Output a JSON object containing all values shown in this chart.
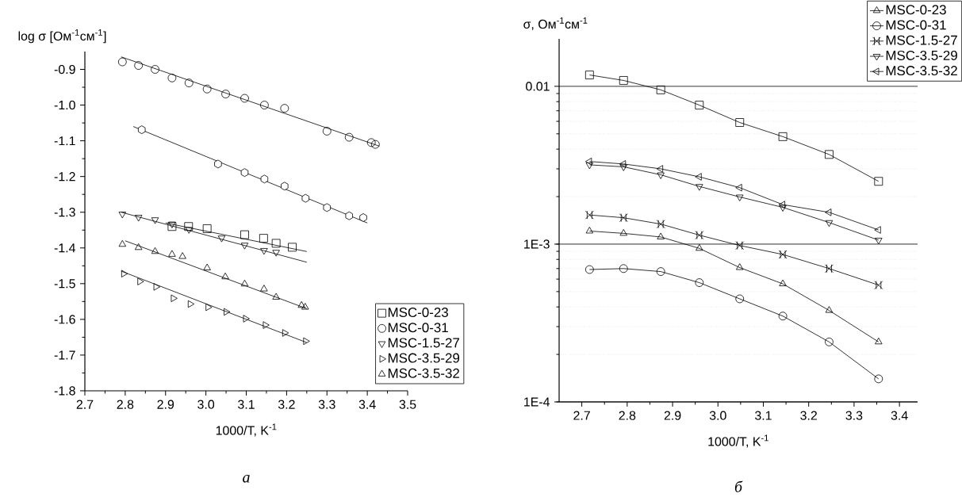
{
  "chart_data": [
    {
      "type": "scatter",
      "ylabel": "log σ [Ом$^{-1}$см$^{-1}$]",
      "xlabel": "1000/T, K$^{-1}$",
      "annotations": [
        "а"
      ],
      "xlim": [
        2.7,
        3.5
      ],
      "ylim": [
        -1.8,
        -0.85
      ],
      "xticks": [
        2.7,
        2.8,
        2.9,
        {
          "value": 3.0,
          "label": "3.0"
        },
        3.1,
        3.2,
        3.3,
        3.4,
        3.5
      ],
      "yticks": [
        -1.8,
        -1.7,
        -1.6,
        -1.5,
        -1.4,
        -1.3,
        -1.2,
        -1.1,
        {
          "value": -1.0,
          "label": "-1.0"
        },
        -0.9
      ],
      "legend": "bottom right",
      "series": [
        {
          "color": "#000000",
          "x": [
            2.841,
            3.03,
            3.096,
            3.145,
            3.195,
            3.247,
            3.3,
            3.355,
            3.39
          ],
          "values": [
            -1.069,
            -1.165,
            -1.189,
            -1.207,
            -1.227,
            -1.261,
            -1.287,
            -1.31,
            -1.315
          ]
        },
        {
          "name": "MSC-0-23",
          "marker": "square",
          "color": "#000000",
          "x": [
            2.916,
            2.957,
            3.003,
            3.096,
            3.143,
            3.174,
            3.214
          ],
          "values": [
            -1.34,
            -1.34,
            -1.346,
            -1.363,
            -1.373,
            -1.387,
            -1.398
          ]
        },
        {
          "name": "MSC-0-31",
          "marker": "circle",
          "color": "#000000",
          "x": [
            2.793,
            2.833,
            2.874,
            2.916,
            2.958,
            3.003,
            3.049,
            3.096,
            3.145,
            3.195,
            3.3,
            3.355,
            3.41,
            3.42
          ],
          "values": [
            -0.879,
            -0.889,
            -0.9,
            -0.924,
            -0.938,
            -0.955,
            -0.969,
            -0.981,
            -1.0,
            -1.009,
            -1.073,
            -1.09,
            -1.105,
            -1.11
          ]
        },
        {
          "name": "MSC-1.5-27",
          "marker": "triangle-down",
          "color": "#000000",
          "x": [
            2.793,
            2.833,
            2.874,
            2.916,
            2.958,
            3.039,
            3.096,
            3.144,
            3.174
          ],
          "values": [
            -1.305,
            -1.314,
            -1.321,
            -1.333,
            -1.348,
            -1.372,
            -1.392,
            -1.407,
            -1.412
          ]
        },
        {
          "name": "MSC-3.5-29",
          "marker": "triangle-right",
          "color": "#000000",
          "x": [
            2.796,
            2.836,
            2.876,
            2.919,
            2.961,
            3.005,
            3.05,
            3.098,
            3.147,
            3.195,
            3.247
          ],
          "values": [
            -1.472,
            -1.494,
            -1.509,
            -1.541,
            -1.557,
            -1.566,
            -1.579,
            -1.598,
            -1.616,
            -1.638,
            -1.661
          ]
        },
        {
          "name": "MSC-3.5-32",
          "marker": "triangle",
          "color": "#000000",
          "x": [
            2.793,
            2.833,
            2.874,
            2.916,
            2.942,
            3.003,
            3.048,
            3.096,
            3.144,
            3.174,
            3.237,
            3.246
          ],
          "values": [
            -1.39,
            -1.399,
            -1.41,
            -1.418,
            -1.424,
            -1.456,
            -1.481,
            -1.501,
            -1.515,
            -1.538,
            -1.561,
            -1.566
          ]
        },
        {
          "type": "line",
          "marker": "none",
          "color": "#000000",
          "x": [
            2.79,
            3.43
          ],
          "values": [
            -0.865,
            -1.115
          ]
        },
        {
          "type": "line",
          "marker": "none",
          "color": "#000000",
          "x": [
            2.82,
            3.4
          ],
          "values": [
            -1.06,
            -1.33
          ]
        },
        {
          "type": "line",
          "marker": "none",
          "color": "#000000",
          "x": [
            2.9,
            3.25
          ],
          "values": [
            -1.33,
            -1.41
          ]
        },
        {
          "type": "line",
          "marker": "none",
          "color": "#000000",
          "x": [
            2.79,
            3.25
          ],
          "values": [
            -1.3,
            -1.44
          ]
        },
        {
          "type": "line",
          "marker": "none",
          "color": "#000000",
          "x": [
            2.8,
            3.25
          ],
          "values": [
            -1.38,
            -1.57
          ]
        },
        {
          "type": "line",
          "marker": "none",
          "color": "#000000",
          "x": [
            2.79,
            3.25
          ],
          "values": [
            -1.465,
            -1.665
          ]
        }
      ]
    },
    {
      "type": "line",
      "ylabel": "σ, Ом$^{-1}$см$^{-1}$",
      "xlabel": "1000/T, K$^{-1}$",
      "annotations": [
        "б"
      ],
      "log": "y",
      "grid": "y",
      "line_style": "solid",
      "legend": "top right",
      "xlim": [
        2.65,
        3.44
      ],
      "ylim": [
        0.0001,
        0.02
      ],
      "xticks": [
        2.7,
        2.8,
        2.9,
        {
          "value": 3.0,
          "label": "3.0"
        },
        3.1,
        3.2,
        3.3,
        3.4
      ],
      "yticks": [
        {
          "value": 0.0001,
          "label": "1E-4"
        },
        {
          "value": 0.001,
          "label": "1E-3"
        },
        0.01
      ],
      "x": [
        2.717,
        2.792,
        2.874,
        2.959,
        3.048,
        3.143,
        3.245,
        3.354
      ],
      "series": [
        {
          "marker": "square",
          "color": "#000000",
          "values": [
            0.0118,
            0.0109,
            0.0095,
            0.0076,
            0.0059,
            0.0048,
            0.0037,
            0.0025
          ]
        },
        {
          "name": "MSC-0-23",
          "marker": "triangle",
          "color": "#000000",
          "values": [
            0.00121,
            0.00117,
            0.00111,
            0.00094,
            0.00071,
            0.00056,
            0.00038,
            0.00024
          ]
        },
        {
          "name": "MSC-0-31",
          "marker": "circle",
          "color": "#000000",
          "values": [
            0.00069,
            0.0007,
            0.00067,
            0.00057,
            0.00045,
            0.00035,
            0.00024,
            0.00014
          ]
        },
        {
          "name": "MSC-1.5-27",
          "marker": "cross",
          "color": "#000000",
          "values": [
            0.00153,
            0.00147,
            0.00134,
            0.00114,
            0.00098,
            0.00086,
            0.0007,
            0.00055
          ]
        },
        {
          "name": "MSC-3.5-29",
          "marker": "triangle-down",
          "color": "#000000",
          "values": [
            0.00318,
            0.00309,
            0.00275,
            0.00232,
            0.00199,
            0.00171,
            0.00137,
            0.00106
          ]
        },
        {
          "name": "MSC-3.5-32",
          "marker": "triangle-left",
          "color": "#000000",
          "values": [
            0.00334,
            0.00322,
            0.003,
            0.00267,
            0.00228,
            0.00178,
            0.00159,
            0.00123
          ]
        }
      ]
    }
  ]
}
